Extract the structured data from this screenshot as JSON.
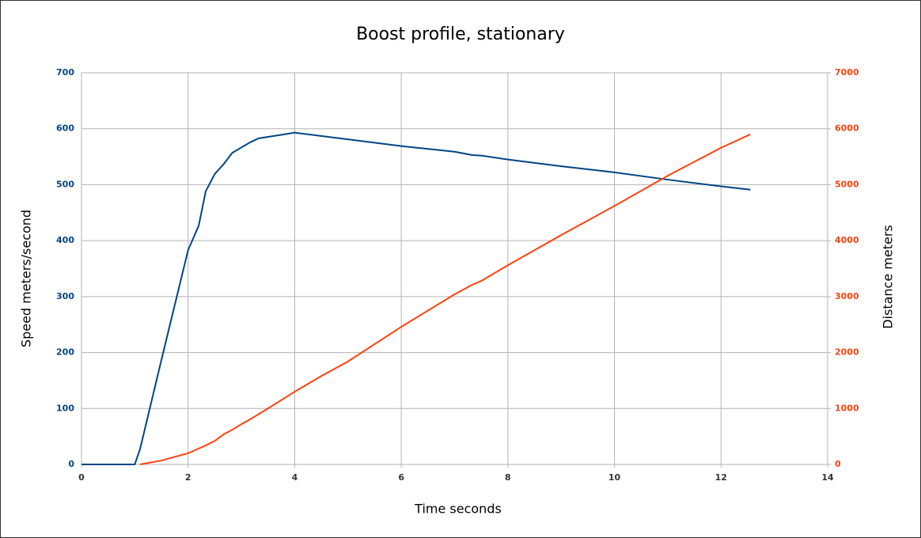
{
  "chart_data": {
    "type": "line",
    "title": "Boost profile, stationary",
    "x_label": "Time seconds",
    "y_label": "Speed meters/second",
    "y2_label": "Distance meters",
    "xlim": [
      0,
      14
    ],
    "xticks": [
      0,
      2,
      4,
      6,
      8,
      10,
      12,
      14
    ],
    "ylim": [
      0,
      700
    ],
    "yticks": [
      0,
      100,
      200,
      300,
      400,
      500,
      600,
      700
    ],
    "y2lim": [
      0,
      7000
    ],
    "y2ticks": [
      0,
      1000,
      2000,
      3000,
      4000,
      5000,
      6000,
      7000
    ],
    "grid": true,
    "series": [
      {
        "name": "Speed",
        "color": "#004586",
        "x": [
          0,
          0.5,
          1,
          1.1,
          1.5,
          2,
          2.2,
          2.33,
          2.5,
          2.67,
          2.83,
          3.17,
          3.33,
          3.67,
          4,
          5,
          6,
          7,
          7.33,
          7.5,
          8,
          9,
          10,
          11,
          12,
          12.55
        ],
        "values": [
          0,
          0,
          0,
          28,
          187,
          383,
          427,
          488,
          519,
          537,
          557,
          576,
          583,
          588,
          593,
          581,
          569,
          559,
          553,
          552,
          545,
          533,
          522,
          509,
          497,
          491
        ]
      },
      {
        "name": "Distance",
        "color": "#ff420e",
        "axis": "y2",
        "x": [
          1.1,
          1.5,
          2,
          2.33,
          2.5,
          2.67,
          2.83,
          3,
          3.17,
          3.5,
          4,
          4.5,
          5,
          6,
          7,
          7.33,
          7.5,
          8,
          9,
          10,
          11,
          12,
          12.55
        ],
        "values": [
          0,
          70,
          200,
          340,
          420,
          540,
          620,
          720,
          810,
          1000,
          1300,
          1580,
          1840,
          2460,
          3040,
          3210,
          3280,
          3560,
          4100,
          4620,
          5160,
          5660,
          5900
        ]
      }
    ]
  }
}
